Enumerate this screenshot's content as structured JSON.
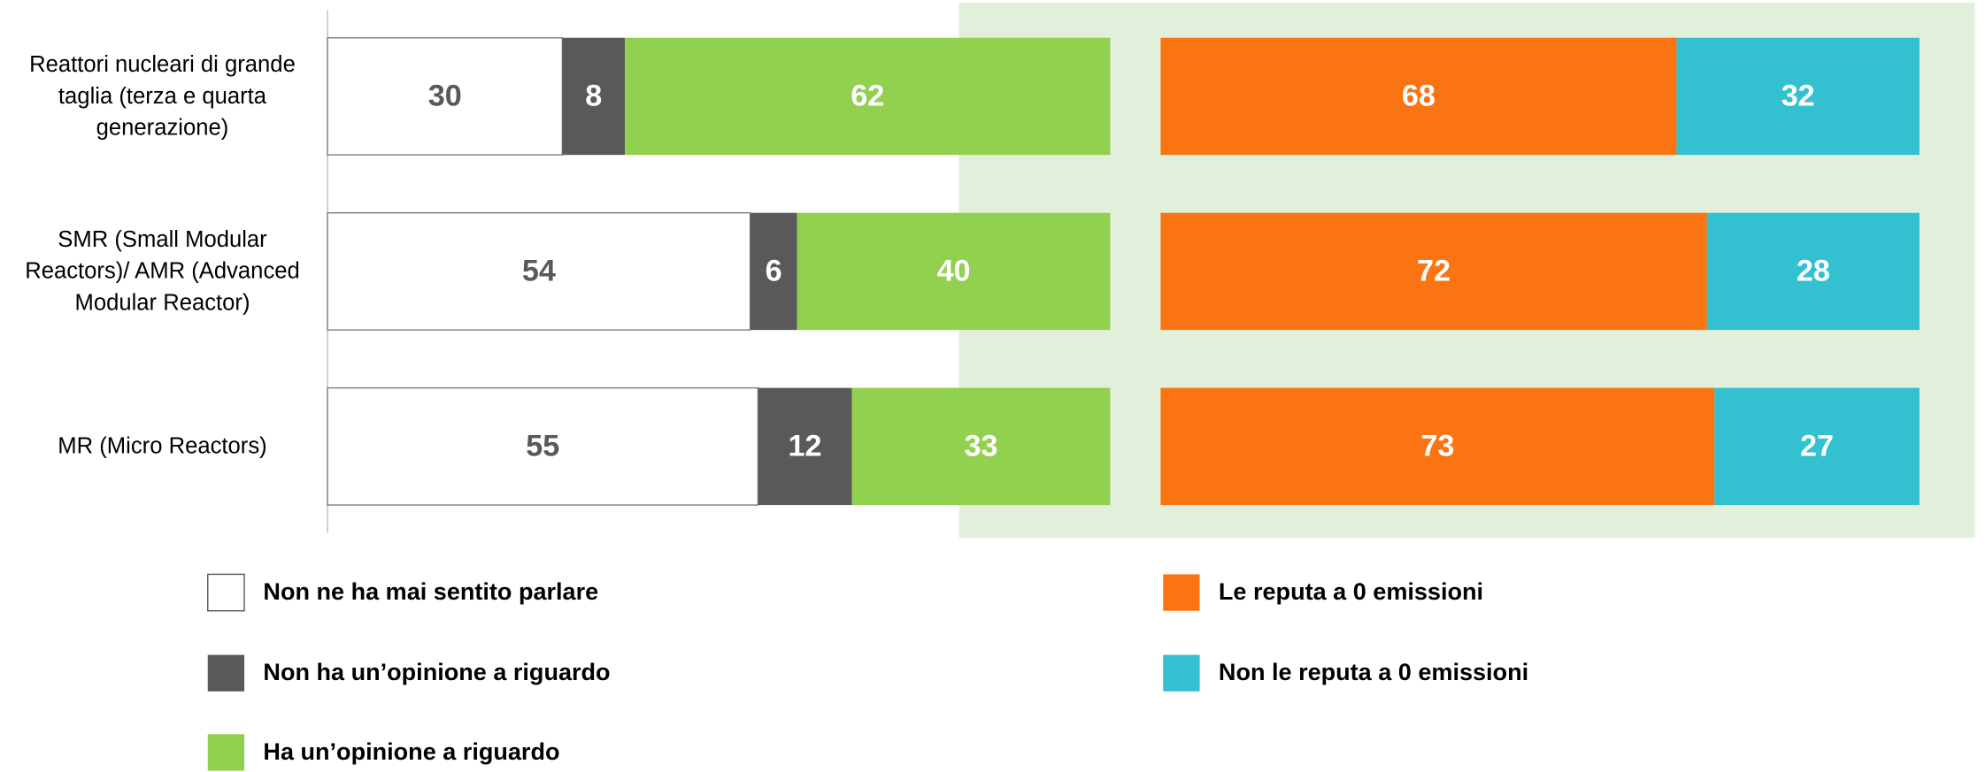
{
  "chart_data": [
    {
      "type": "bar",
      "orientation": "horizontal",
      "stacked": true,
      "categories": [
        "Reattori nucleari di grande taglia (terza e quarta generazione)",
        "SMR (Small Modular Reactors)/ AMR (Advanced Modular Reactor)",
        "MR (Micro Reactors)"
      ],
      "xlim": [
        0,
        100
      ],
      "series": [
        {
          "name": "Non ne ha mai sentito parlare",
          "color": "#ffffff",
          "values": [
            30,
            54,
            55
          ]
        },
        {
          "name": "Non ha un’opinione a riguardo",
          "color": "#595959",
          "values": [
            8,
            6,
            12
          ]
        },
        {
          "name": "Ha un’opinione a riguardo",
          "color": "#92d050",
          "values": [
            62,
            40,
            33
          ]
        }
      ]
    },
    {
      "type": "bar",
      "orientation": "horizontal",
      "stacked": true,
      "categories": [
        null,
        null,
        null
      ],
      "xlim": [
        0,
        100
      ],
      "series": [
        {
          "name": "Le reputa a 0 emissioni",
          "color": "#fa7413",
          "values": [
            68,
            72,
            73
          ]
        },
        {
          "name": "Non le reputa a 0 emissioni",
          "color": "#33c0d0",
          "values": [
            32,
            28,
            27
          ]
        }
      ]
    }
  ]
}
